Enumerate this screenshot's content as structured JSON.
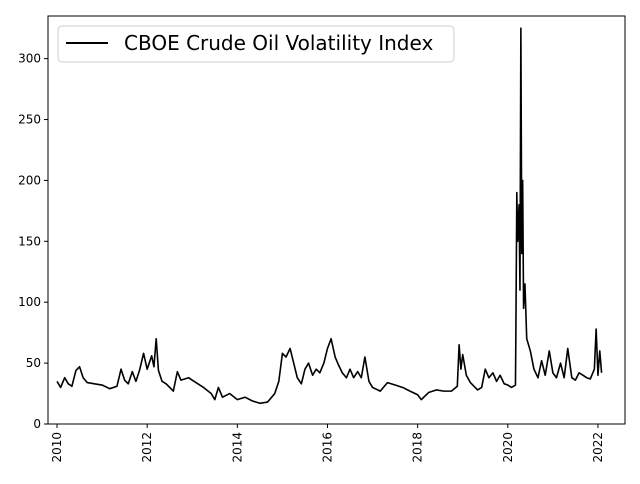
{
  "chart_data": {
    "type": "line",
    "title": "",
    "xlabel": "",
    "ylabel": "",
    "xlim": [
      2009.8,
      2022.6
    ],
    "ylim": [
      0,
      335
    ],
    "x_ticks": [
      2010,
      2012,
      2014,
      2016,
      2018,
      2020,
      2022
    ],
    "x_tick_labels": [
      "2010",
      "2012",
      "2014",
      "2016",
      "2018",
      "2020",
      "2022"
    ],
    "y_ticks": [
      0,
      50,
      100,
      150,
      200,
      250,
      300
    ],
    "y_tick_labels": [
      "0",
      "50",
      "100",
      "150",
      "200",
      "250",
      "300"
    ],
    "grid": false,
    "legend_position": "upper-left",
    "colors": {
      "line": "#000000"
    },
    "series": [
      {
        "name": "CBOE Crude Oil Volatility Index",
        "points": [
          [
            2010.0,
            35
          ],
          [
            2010.08,
            30
          ],
          [
            2010.17,
            38
          ],
          [
            2010.25,
            33
          ],
          [
            2010.33,
            31
          ],
          [
            2010.42,
            44
          ],
          [
            2010.5,
            47
          ],
          [
            2010.58,
            38
          ],
          [
            2010.67,
            34
          ],
          [
            2010.83,
            33
          ],
          [
            2011.0,
            32
          ],
          [
            2011.17,
            29
          ],
          [
            2011.33,
            31
          ],
          [
            2011.42,
            45
          ],
          [
            2011.5,
            36
          ],
          [
            2011.58,
            33
          ],
          [
            2011.67,
            43
          ],
          [
            2011.75,
            35
          ],
          [
            2011.83,
            44
          ],
          [
            2011.92,
            58
          ],
          [
            2012.0,
            45
          ],
          [
            2012.1,
            56
          ],
          [
            2012.15,
            47
          ],
          [
            2012.2,
            70
          ],
          [
            2012.25,
            44
          ],
          [
            2012.33,
            35
          ],
          [
            2012.42,
            33
          ],
          [
            2012.58,
            27
          ],
          [
            2012.67,
            43
          ],
          [
            2012.75,
            36
          ],
          [
            2012.92,
            38
          ],
          [
            2013.0,
            36
          ],
          [
            2013.25,
            30
          ],
          [
            2013.42,
            25
          ],
          [
            2013.5,
            20
          ],
          [
            2013.58,
            30
          ],
          [
            2013.67,
            22
          ],
          [
            2013.83,
            25
          ],
          [
            2014.0,
            20
          ],
          [
            2014.17,
            22
          ],
          [
            2014.33,
            19
          ],
          [
            2014.5,
            17
          ],
          [
            2014.67,
            18
          ],
          [
            2014.83,
            25
          ],
          [
            2014.92,
            35
          ],
          [
            2015.0,
            58
          ],
          [
            2015.08,
            55
          ],
          [
            2015.17,
            62
          ],
          [
            2015.25,
            50
          ],
          [
            2015.33,
            38
          ],
          [
            2015.42,
            33
          ],
          [
            2015.5,
            45
          ],
          [
            2015.58,
            50
          ],
          [
            2015.67,
            40
          ],
          [
            2015.75,
            45
          ],
          [
            2015.83,
            42
          ],
          [
            2015.92,
            50
          ],
          [
            2016.0,
            62
          ],
          [
            2016.08,
            70
          ],
          [
            2016.17,
            55
          ],
          [
            2016.25,
            48
          ],
          [
            2016.33,
            42
          ],
          [
            2016.42,
            38
          ],
          [
            2016.5,
            45
          ],
          [
            2016.58,
            38
          ],
          [
            2016.67,
            43
          ],
          [
            2016.75,
            38
          ],
          [
            2016.83,
            55
          ],
          [
            2016.92,
            35
          ],
          [
            2017.0,
            30
          ],
          [
            2017.17,
            27
          ],
          [
            2017.33,
            34
          ],
          [
            2017.5,
            32
          ],
          [
            2017.67,
            30
          ],
          [
            2017.83,
            27
          ],
          [
            2018.0,
            24
          ],
          [
            2018.08,
            20
          ],
          [
            2018.25,
            26
          ],
          [
            2018.42,
            28
          ],
          [
            2018.58,
            27
          ],
          [
            2018.75,
            27
          ],
          [
            2018.88,
            31
          ],
          [
            2018.92,
            65
          ],
          [
            2018.96,
            45
          ],
          [
            2019.0,
            57
          ],
          [
            2019.08,
            40
          ],
          [
            2019.17,
            34
          ],
          [
            2019.33,
            28
          ],
          [
            2019.42,
            30
          ],
          [
            2019.5,
            45
          ],
          [
            2019.58,
            38
          ],
          [
            2019.67,
            42
          ],
          [
            2019.75,
            35
          ],
          [
            2019.83,
            40
          ],
          [
            2019.92,
            33
          ],
          [
            2020.0,
            32
          ],
          [
            2020.08,
            30
          ],
          [
            2020.17,
            32
          ],
          [
            2020.18,
            80
          ],
          [
            2020.2,
            190
          ],
          [
            2020.22,
            150
          ],
          [
            2020.25,
            180
          ],
          [
            2020.27,
            110
          ],
          [
            2020.29,
            325
          ],
          [
            2020.31,
            140
          ],
          [
            2020.33,
            200
          ],
          [
            2020.35,
            95
          ],
          [
            2020.38,
            115
          ],
          [
            2020.42,
            70
          ],
          [
            2020.5,
            60
          ],
          [
            2020.58,
            45
          ],
          [
            2020.67,
            38
          ],
          [
            2020.75,
            52
          ],
          [
            2020.83,
            40
          ],
          [
            2020.92,
            60
          ],
          [
            2021.0,
            42
          ],
          [
            2021.08,
            38
          ],
          [
            2021.17,
            50
          ],
          [
            2021.25,
            38
          ],
          [
            2021.33,
            62
          ],
          [
            2021.42,
            38
          ],
          [
            2021.5,
            36
          ],
          [
            2021.58,
            42
          ],
          [
            2021.67,
            40
          ],
          [
            2021.75,
            38
          ],
          [
            2021.83,
            37
          ],
          [
            2021.92,
            45
          ],
          [
            2021.96,
            78
          ],
          [
            2022.0,
            40
          ],
          [
            2022.04,
            60
          ],
          [
            2022.08,
            42
          ]
        ]
      }
    ]
  }
}
